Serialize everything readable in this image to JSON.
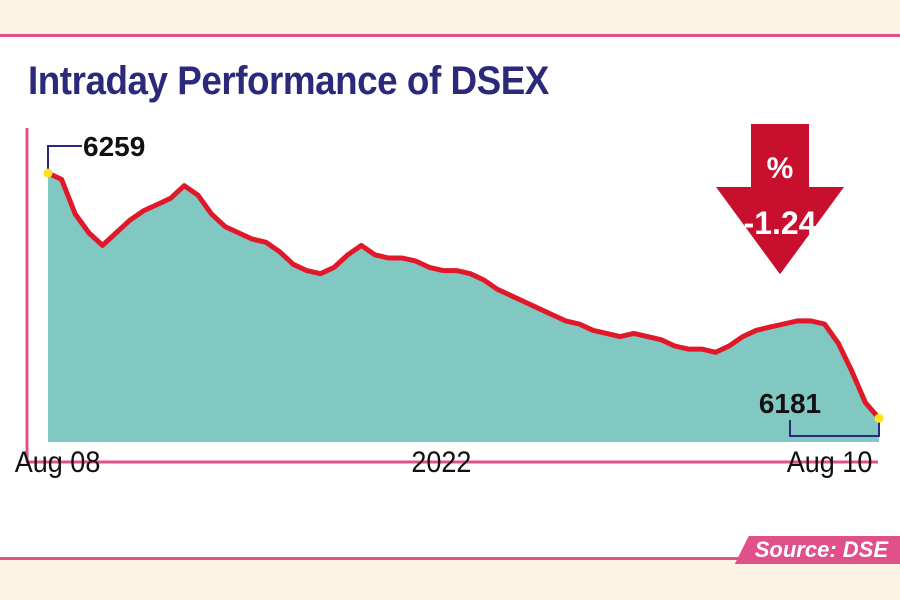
{
  "title": "Intraday Performance of DSEX",
  "source": "Source: DSE",
  "colors": {
    "title": "#2b2a7a",
    "accent": "#e0508a",
    "area_fill": "#82c8c2",
    "line": "#e0182a",
    "marker": "#ffe31a",
    "arrow": "#c8102e"
  },
  "change_badge": {
    "symbol": "%",
    "value": "-1.24",
    "direction": "down"
  },
  "x_labels": {
    "start": "Aug 08",
    "middle": "2022",
    "end": "Aug 10"
  },
  "chart_data": {
    "type": "area",
    "title": "Intraday Performance of DSEX",
    "xlabel": "",
    "ylabel": "",
    "x_range": [
      "Aug 08 2022",
      "Aug 10 2022"
    ],
    "ylim": [
      6176,
      6260
    ],
    "grid": false,
    "series": [
      {
        "values": [
          6259,
          6257,
          6246,
          6240,
          6236,
          6240,
          6244,
          6247,
          6249,
          6251,
          6255,
          6252,
          6246,
          6242,
          6240,
          6238,
          6237,
          6234,
          6230,
          6228,
          6227,
          6229,
          6233,
          6236,
          6233,
          6232,
          6232,
          6231,
          6229,
          6228,
          6228,
          6227,
          6225,
          6222,
          6220,
          6218,
          6216,
          6214,
          6212,
          6211,
          6209,
          6208,
          6207,
          6208,
          6207,
          6206,
          6204,
          6203,
          6203,
          6202,
          6204,
          6207,
          6209,
          6210,
          6211,
          6212,
          6212,
          6211,
          6205,
          6196,
          6186,
          6181
        ],
        "annotations": [
          {
            "label": "6259",
            "point": "start"
          },
          {
            "label": "6181",
            "point": "end"
          }
        ]
      }
    ]
  }
}
